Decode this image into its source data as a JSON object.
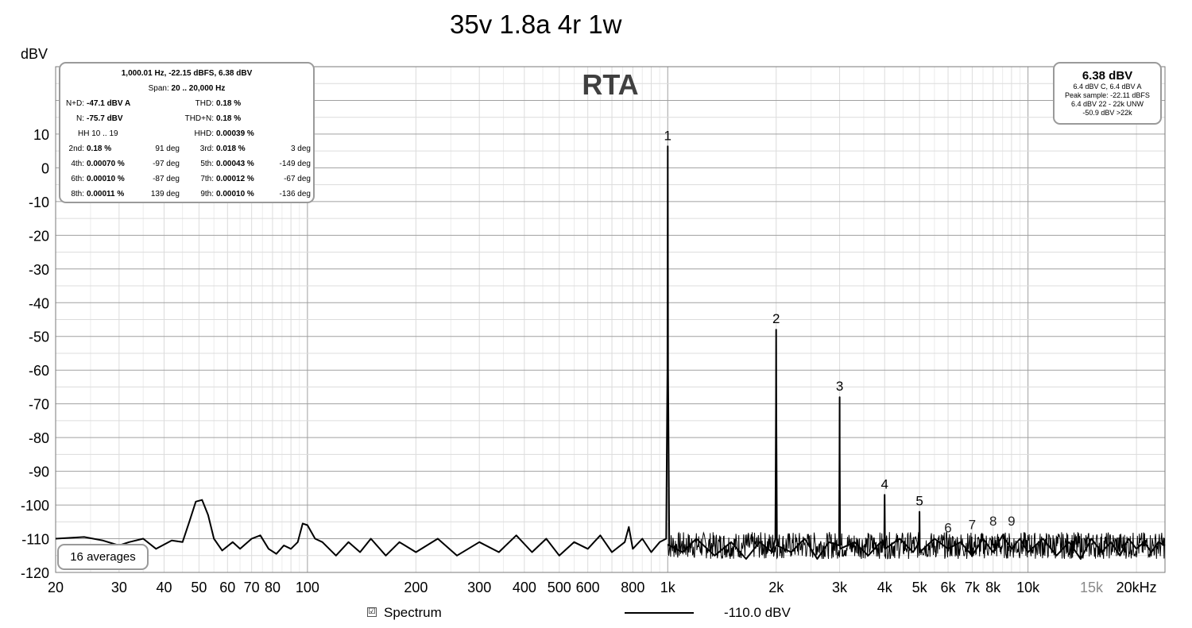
{
  "title": "35v 1.8a 4r 1w",
  "colors": {
    "trace": "#000000",
    "grid_major": "#a0a0a0",
    "grid_minor": "#dcdcdc",
    "box_border": "#9a9a9a",
    "muted_tick": "#8a8a8a"
  },
  "measurements": {
    "header": "1,000.01 Hz, -22.15 dBFS, 6.38 dBV",
    "span_label": "Span:",
    "span_value": "20 .. 20,000 Hz",
    "nd_label": "N+D:",
    "nd_value": "-47.1 dBV A",
    "thd_label": "THD:",
    "thd_value": "0.18 %",
    "n_label": "N:",
    "n_value": "-75.7 dBV",
    "thdn_label": "THD+N:",
    "thdn_value": "0.18 %",
    "hh_label": "HH 10 .. 19",
    "hhd_label": "HHD:",
    "hhd_value": "0.00039 %",
    "harmonics": [
      {
        "label": "2nd:",
        "value": "0.18 %",
        "phase": "91 deg"
      },
      {
        "label": "3rd:",
        "value": "0.018 %",
        "phase": "3 deg"
      },
      {
        "label": "4th:",
        "value": "0.00070 %",
        "phase": "-97 deg"
      },
      {
        "label": "5th:",
        "value": "0.00043 %",
        "phase": "-149 deg"
      },
      {
        "label": "6th:",
        "value": "0.00010 %",
        "phase": "-87 deg"
      },
      {
        "label": "7th:",
        "value": "0.00012 %",
        "phase": "-67 deg"
      },
      {
        "label": "8th:",
        "value": "0.00011 %",
        "phase": "139 deg"
      },
      {
        "label": "9th:",
        "value": "0.00010 %",
        "phase": "-136 deg"
      }
    ]
  },
  "level": {
    "main": "6.38 dBV",
    "line1": "6.4 dBV C, 6.4 dBV A",
    "line2": "Peak sample: -22.11 dBFS",
    "line3": "6.4 dBV 22 - 22k UNW",
    "line4": "-50.9 dBV >22k"
  },
  "averages": "16 averages",
  "legend": {
    "label": "Spectrum",
    "checkbox": "☑",
    "value": "-110.0 dBV"
  },
  "chart_data": {
    "type": "line",
    "title": "RTA",
    "ylabel": "dBV",
    "xlabel": "",
    "x_scale": "log",
    "xlim": [
      20,
      24000
    ],
    "ylim": [
      -120,
      30
    ],
    "grid": true,
    "x_ticks": [
      {
        "v": 20,
        "label": "20"
      },
      {
        "v": 30,
        "label": "30"
      },
      {
        "v": 40,
        "label": "40"
      },
      {
        "v": 50,
        "label": "50"
      },
      {
        "v": 60,
        "label": "60"
      },
      {
        "v": 70,
        "label": "70"
      },
      {
        "v": 80,
        "label": "80"
      },
      {
        "v": 100,
        "label": "100"
      },
      {
        "v": 200,
        "label": "200"
      },
      {
        "v": 300,
        "label": "300"
      },
      {
        "v": 400,
        "label": "400"
      },
      {
        "v": 500,
        "label": "500"
      },
      {
        "v": 600,
        "label": "600"
      },
      {
        "v": 800,
        "label": "800"
      },
      {
        "v": 1000,
        "label": "1k"
      },
      {
        "v": 2000,
        "label": "2k"
      },
      {
        "v": 3000,
        "label": "3k"
      },
      {
        "v": 4000,
        "label": "4k"
      },
      {
        "v": 5000,
        "label": "5k"
      },
      {
        "v": 6000,
        "label": "6k"
      },
      {
        "v": 7000,
        "label": "7k"
      },
      {
        "v": 8000,
        "label": "8k"
      },
      {
        "v": 10000,
        "label": "10k"
      },
      {
        "v": 15000,
        "label": "15k",
        "muted": true
      },
      {
        "v": 20000,
        "label": "20kHz"
      }
    ],
    "y_ticks": [
      {
        "v": 10,
        "label": "10"
      },
      {
        "v": 0,
        "label": "0"
      },
      {
        "v": -10,
        "label": "-10"
      },
      {
        "v": -20,
        "label": "-20"
      },
      {
        "v": -30,
        "label": "-30"
      },
      {
        "v": -40,
        "label": "-40"
      },
      {
        "v": -50,
        "label": "-50"
      },
      {
        "v": -60,
        "label": "-60"
      },
      {
        "v": -70,
        "label": "-70"
      },
      {
        "v": -80,
        "label": "-80"
      },
      {
        "v": -90,
        "label": "-90"
      },
      {
        "v": -100,
        "label": "-100"
      },
      {
        "v": -110,
        "label": "-110"
      },
      {
        "v": -120,
        "label": "-120"
      }
    ],
    "series": [
      {
        "points": [
          [
            20,
            -110
          ],
          [
            24,
            -109.5
          ],
          [
            27,
            -110.5
          ],
          [
            30,
            -112
          ],
          [
            32,
            -111
          ],
          [
            35,
            -110
          ],
          [
            38,
            -113
          ],
          [
            42,
            -110.5
          ],
          [
            45,
            -111
          ],
          [
            47,
            -105
          ],
          [
            49,
            -99
          ],
          [
            51,
            -98.5
          ],
          [
            53,
            -103
          ],
          [
            55,
            -110
          ],
          [
            58,
            -113.5
          ],
          [
            62,
            -111
          ],
          [
            65,
            -113
          ],
          [
            70,
            -110
          ],
          [
            74,
            -109
          ],
          [
            78,
            -113
          ],
          [
            82,
            -114.5
          ],
          [
            86,
            -112
          ],
          [
            90,
            -113
          ],
          [
            94,
            -111
          ],
          [
            97,
            -105.5
          ],
          [
            100,
            -106
          ],
          [
            105,
            -110
          ],
          [
            110,
            -111
          ],
          [
            120,
            -115
          ],
          [
            130,
            -111
          ],
          [
            140,
            -114
          ],
          [
            150,
            -110
          ],
          [
            165,
            -115
          ],
          [
            180,
            -111
          ],
          [
            200,
            -114
          ],
          [
            230,
            -110
          ],
          [
            260,
            -115
          ],
          [
            300,
            -111
          ],
          [
            340,
            -114
          ],
          [
            380,
            -109
          ],
          [
            420,
            -114
          ],
          [
            460,
            -110
          ],
          [
            500,
            -115
          ],
          [
            550,
            -111
          ],
          [
            600,
            -113
          ],
          [
            650,
            -109
          ],
          [
            700,
            -114
          ],
          [
            760,
            -111
          ],
          [
            780,
            -106.5
          ],
          [
            800,
            -113
          ],
          [
            850,
            -110
          ],
          [
            900,
            -114
          ],
          [
            950,
            -111
          ],
          [
            990,
            -110
          ],
          [
            998,
            -60
          ],
          [
            1000,
            6.38
          ],
          [
            1002,
            -60
          ],
          [
            1010,
            -112
          ],
          [
            1100,
            -114
          ],
          [
            1200,
            -110
          ],
          [
            1350,
            -115
          ],
          [
            1500,
            -111
          ],
          [
            1650,
            -116
          ],
          [
            1800,
            -111
          ],
          [
            1950,
            -114
          ],
          [
            1990,
            -110
          ],
          [
            1998,
            -70
          ],
          [
            2000,
            -48
          ],
          [
            2002,
            -70
          ],
          [
            2010,
            -112
          ],
          [
            2200,
            -114
          ],
          [
            2400,
            -110
          ],
          [
            2600,
            -116
          ],
          [
            2800,
            -111
          ],
          [
            2990,
            -112
          ],
          [
            2998,
            -85
          ],
          [
            3000,
            -68
          ],
          [
            3002,
            -85
          ],
          [
            3010,
            -113
          ],
          [
            3300,
            -111
          ],
          [
            3600,
            -115
          ],
          [
            3900,
            -111
          ],
          [
            3990,
            -112
          ],
          [
            4000,
            -97
          ],
          [
            4010,
            -113
          ],
          [
            4400,
            -110
          ],
          [
            4800,
            -114
          ],
          [
            4990,
            -111
          ],
          [
            5000,
            -102
          ],
          [
            5010,
            -114
          ],
          [
            5500,
            -110
          ],
          [
            6000,
            -113
          ],
          [
            6500,
            -111
          ],
          [
            7000,
            -115
          ],
          [
            7500,
            -110
          ],
          [
            8000,
            -114
          ],
          [
            8500,
            -109
          ],
          [
            9000,
            -113
          ],
          [
            9500,
            -110
          ],
          [
            10000,
            -114
          ],
          [
            11000,
            -110
          ],
          [
            12000,
            -115
          ],
          [
            13000,
            -111
          ],
          [
            14000,
            -116
          ],
          [
            15000,
            -110
          ],
          [
            16000,
            -114
          ],
          [
            17000,
            -111
          ],
          [
            18000,
            -115
          ],
          [
            19000,
            -110
          ],
          [
            20000,
            -113
          ],
          [
            21000,
            -111
          ],
          [
            22000,
            -114
          ],
          [
            23000,
            -111
          ],
          [
            24000,
            -112
          ]
        ]
      }
    ],
    "noise_band": {
      "x_from": 1000,
      "x_to": 24000,
      "y_low": -116,
      "y_high": -108
    },
    "annotations": [
      {
        "x": 1000,
        "y": 6.38,
        "label": "1"
      },
      {
        "x": 2000,
        "y": -48,
        "label": "2"
      },
      {
        "x": 3000,
        "y": -68,
        "label": "3"
      },
      {
        "x": 4000,
        "y": -97,
        "label": "4"
      },
      {
        "x": 5000,
        "y": -102,
        "label": "5"
      },
      {
        "x": 6000,
        "y": -110,
        "label": "6",
        "muted": true
      },
      {
        "x": 7000,
        "y": -109,
        "label": "7",
        "muted": true
      },
      {
        "x": 8000,
        "y": -108,
        "label": "8",
        "muted": true
      },
      {
        "x": 9000,
        "y": -108,
        "label": "9",
        "muted": true
      }
    ]
  }
}
